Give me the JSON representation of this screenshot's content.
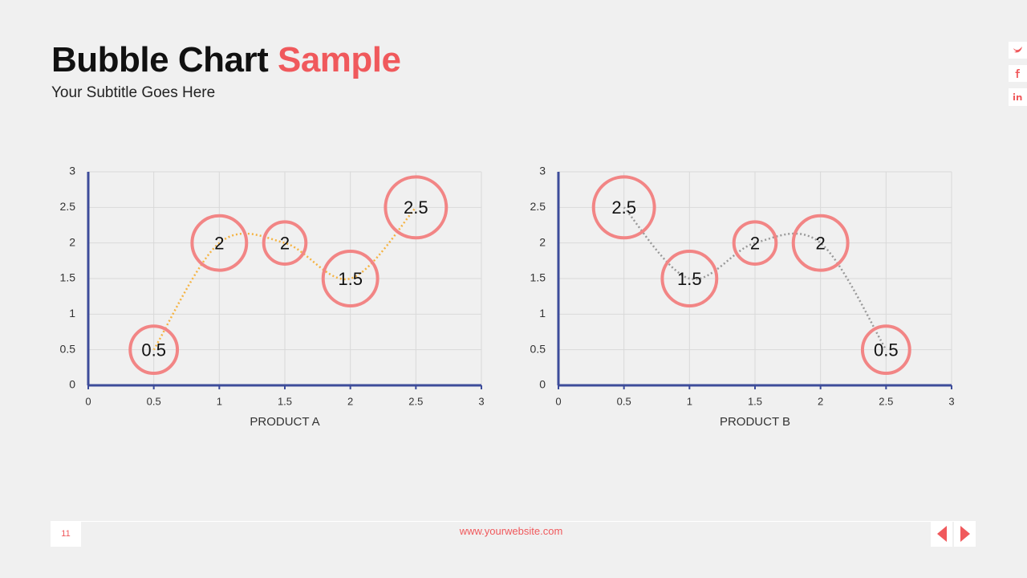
{
  "header": {
    "title": "Bubble Chart",
    "title_accent": "Sample",
    "subtitle": "Your Subtitle Goes Here"
  },
  "chart_data": [
    {
      "type": "bubble",
      "xlabel": "PRODUCT A",
      "x": [
        0.5,
        1,
        1.5,
        2,
        2.5
      ],
      "values": [
        0.5,
        2,
        2,
        1.5,
        2.5
      ],
      "sizes": [
        1.5,
        2,
        1.2,
        2,
        2.5
      ],
      "line_color": "#f5b342",
      "bubble_color": "#f28585",
      "axis_color": "#3d4c9a",
      "xlim": [
        0,
        3
      ],
      "xticks": [
        0,
        0.5,
        1,
        1.5,
        2,
        2.5,
        3
      ],
      "ylim": [
        0,
        3
      ],
      "yticks": [
        0,
        0.5,
        1,
        1.5,
        2,
        2.5,
        3
      ],
      "grid": true
    },
    {
      "type": "bubble",
      "xlabel": "PRODUCT B",
      "x": [
        0.5,
        1,
        1.5,
        2,
        2.5
      ],
      "values": [
        2.5,
        1.5,
        2,
        2,
        0.5
      ],
      "sizes": [
        2.5,
        2,
        1.2,
        2,
        1.5
      ],
      "line_color": "#999999",
      "bubble_color": "#f28585",
      "axis_color": "#3d4c9a",
      "xlim": [
        0,
        3
      ],
      "xticks": [
        0,
        0.5,
        1,
        1.5,
        2,
        2.5,
        3
      ],
      "ylim": [
        0,
        3
      ],
      "yticks": [
        0,
        0.5,
        1,
        1.5,
        2,
        2.5,
        3
      ],
      "grid": true
    }
  ],
  "footer": {
    "page": "11",
    "website": "www.yourwebsite.com"
  }
}
